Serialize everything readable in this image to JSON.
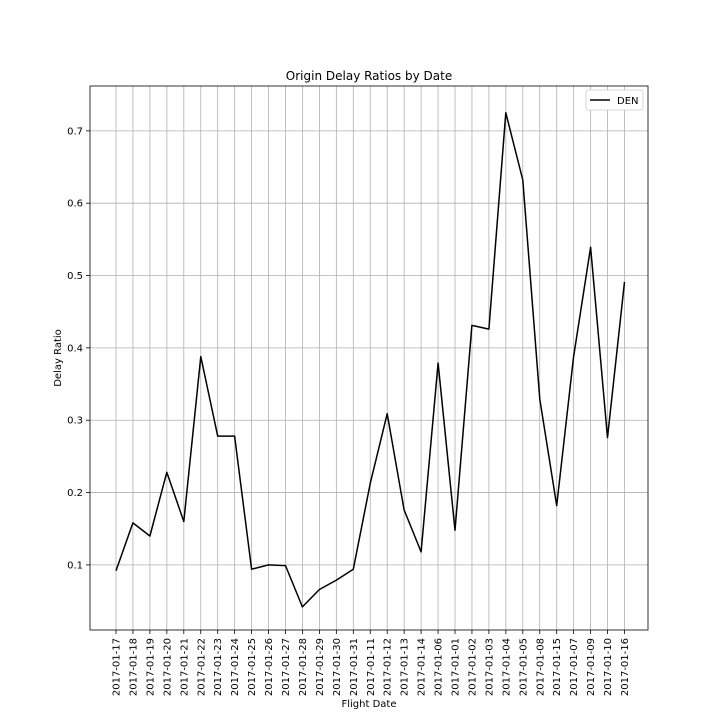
{
  "chart_data": {
    "type": "line",
    "title": "Origin Delay Ratios by Date",
    "xlabel": "Flight Date",
    "ylabel": "Delay Ratio",
    "categories": [
      "2017-01-17",
      "2017-01-18",
      "2017-01-19",
      "2017-01-20",
      "2017-01-21",
      "2017-01-22",
      "2017-01-23",
      "2017-01-24",
      "2017-01-25",
      "2017-01-26",
      "2017-01-27",
      "2017-01-28",
      "2017-01-29",
      "2017-01-30",
      "2017-01-31",
      "2017-01-11",
      "2017-01-12",
      "2017-01-13",
      "2017-01-14",
      "2017-01-06",
      "2017-01-01",
      "2017-01-02",
      "2017-01-03",
      "2017-01-04",
      "2017-01-05",
      "2017-01-08",
      "2017-01-15",
      "2017-01-07",
      "2017-01-09",
      "2017-01-10",
      "2017-01-16"
    ],
    "series": [
      {
        "name": "DEN",
        "color": "#000000",
        "values": [
          0.092,
          0.158,
          0.14,
          0.228,
          0.16,
          0.388,
          0.278,
          0.278,
          0.094,
          0.1,
          0.099,
          0.042,
          0.066,
          0.079,
          0.094,
          0.213,
          0.309,
          0.176,
          0.118,
          0.379,
          0.148,
          0.431,
          0.426,
          0.725,
          0.632,
          0.329,
          0.182,
          0.388,
          0.539,
          0.276,
          0.491
        ]
      }
    ],
    "yticks": [
      0.1,
      0.2,
      0.3,
      0.4,
      0.5,
      0.6,
      0.7
    ],
    "ylim": [
      0.01,
      0.762
    ],
    "grid": true,
    "legend": "top-right"
  }
}
